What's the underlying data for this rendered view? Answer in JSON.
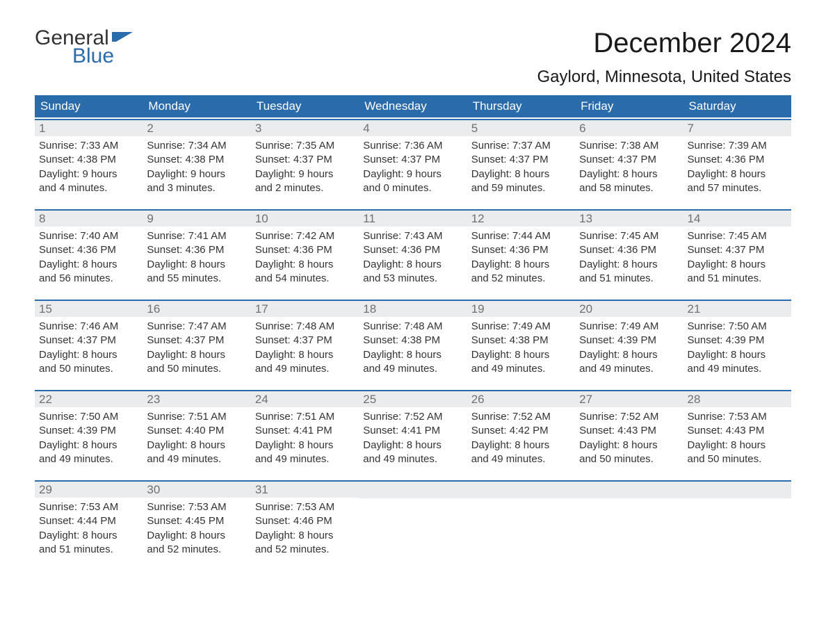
{
  "brand": {
    "word1": "General",
    "word2": "Blue",
    "flag_color": "#2a6bab"
  },
  "title": "December 2024",
  "location": "Gaylord, Minnesota, United States",
  "colors": {
    "header_bg": "#2a6bab",
    "header_text": "#ffffff",
    "row_border": "#2a6bab",
    "daynum_bg": "#ebeced",
    "daynum_text": "#707070",
    "body_text": "#333333",
    "page_bg": "#ffffff"
  },
  "typography": {
    "title_fontsize": 40,
    "location_fontsize": 24,
    "dayheader_fontsize": 17,
    "body_fontsize": 15
  },
  "day_headers": [
    "Sunday",
    "Monday",
    "Tuesday",
    "Wednesday",
    "Thursday",
    "Friday",
    "Saturday"
  ],
  "labels": {
    "sunrise": "Sunrise:",
    "sunset": "Sunset:",
    "daylight": "Daylight:"
  },
  "weeks": [
    [
      {
        "n": 1,
        "sunrise": "7:33 AM",
        "sunset": "4:38 PM",
        "day_h": 9,
        "day_m": 4
      },
      {
        "n": 2,
        "sunrise": "7:34 AM",
        "sunset": "4:38 PM",
        "day_h": 9,
        "day_m": 3
      },
      {
        "n": 3,
        "sunrise": "7:35 AM",
        "sunset": "4:37 PM",
        "day_h": 9,
        "day_m": 2
      },
      {
        "n": 4,
        "sunrise": "7:36 AM",
        "sunset": "4:37 PM",
        "day_h": 9,
        "day_m": 0
      },
      {
        "n": 5,
        "sunrise": "7:37 AM",
        "sunset": "4:37 PM",
        "day_h": 8,
        "day_m": 59
      },
      {
        "n": 6,
        "sunrise": "7:38 AM",
        "sunset": "4:37 PM",
        "day_h": 8,
        "day_m": 58
      },
      {
        "n": 7,
        "sunrise": "7:39 AM",
        "sunset": "4:36 PM",
        "day_h": 8,
        "day_m": 57
      }
    ],
    [
      {
        "n": 8,
        "sunrise": "7:40 AM",
        "sunset": "4:36 PM",
        "day_h": 8,
        "day_m": 56
      },
      {
        "n": 9,
        "sunrise": "7:41 AM",
        "sunset": "4:36 PM",
        "day_h": 8,
        "day_m": 55
      },
      {
        "n": 10,
        "sunrise": "7:42 AM",
        "sunset": "4:36 PM",
        "day_h": 8,
        "day_m": 54
      },
      {
        "n": 11,
        "sunrise": "7:43 AM",
        "sunset": "4:36 PM",
        "day_h": 8,
        "day_m": 53
      },
      {
        "n": 12,
        "sunrise": "7:44 AM",
        "sunset": "4:36 PM",
        "day_h": 8,
        "day_m": 52
      },
      {
        "n": 13,
        "sunrise": "7:45 AM",
        "sunset": "4:36 PM",
        "day_h": 8,
        "day_m": 51
      },
      {
        "n": 14,
        "sunrise": "7:45 AM",
        "sunset": "4:37 PM",
        "day_h": 8,
        "day_m": 51
      }
    ],
    [
      {
        "n": 15,
        "sunrise": "7:46 AM",
        "sunset": "4:37 PM",
        "day_h": 8,
        "day_m": 50
      },
      {
        "n": 16,
        "sunrise": "7:47 AM",
        "sunset": "4:37 PM",
        "day_h": 8,
        "day_m": 50
      },
      {
        "n": 17,
        "sunrise": "7:48 AM",
        "sunset": "4:37 PM",
        "day_h": 8,
        "day_m": 49
      },
      {
        "n": 18,
        "sunrise": "7:48 AM",
        "sunset": "4:38 PM",
        "day_h": 8,
        "day_m": 49
      },
      {
        "n": 19,
        "sunrise": "7:49 AM",
        "sunset": "4:38 PM",
        "day_h": 8,
        "day_m": 49
      },
      {
        "n": 20,
        "sunrise": "7:49 AM",
        "sunset": "4:39 PM",
        "day_h": 8,
        "day_m": 49
      },
      {
        "n": 21,
        "sunrise": "7:50 AM",
        "sunset": "4:39 PM",
        "day_h": 8,
        "day_m": 49
      }
    ],
    [
      {
        "n": 22,
        "sunrise": "7:50 AM",
        "sunset": "4:39 PM",
        "day_h": 8,
        "day_m": 49
      },
      {
        "n": 23,
        "sunrise": "7:51 AM",
        "sunset": "4:40 PM",
        "day_h": 8,
        "day_m": 49
      },
      {
        "n": 24,
        "sunrise": "7:51 AM",
        "sunset": "4:41 PM",
        "day_h": 8,
        "day_m": 49
      },
      {
        "n": 25,
        "sunrise": "7:52 AM",
        "sunset": "4:41 PM",
        "day_h": 8,
        "day_m": 49
      },
      {
        "n": 26,
        "sunrise": "7:52 AM",
        "sunset": "4:42 PM",
        "day_h": 8,
        "day_m": 49
      },
      {
        "n": 27,
        "sunrise": "7:52 AM",
        "sunset": "4:43 PM",
        "day_h": 8,
        "day_m": 50
      },
      {
        "n": 28,
        "sunrise": "7:53 AM",
        "sunset": "4:43 PM",
        "day_h": 8,
        "day_m": 50
      }
    ],
    [
      {
        "n": 29,
        "sunrise": "7:53 AM",
        "sunset": "4:44 PM",
        "day_h": 8,
        "day_m": 51
      },
      {
        "n": 30,
        "sunrise": "7:53 AM",
        "sunset": "4:45 PM",
        "day_h": 8,
        "day_m": 52
      },
      {
        "n": 31,
        "sunrise": "7:53 AM",
        "sunset": "4:46 PM",
        "day_h": 8,
        "day_m": 52
      },
      null,
      null,
      null,
      null
    ]
  ]
}
